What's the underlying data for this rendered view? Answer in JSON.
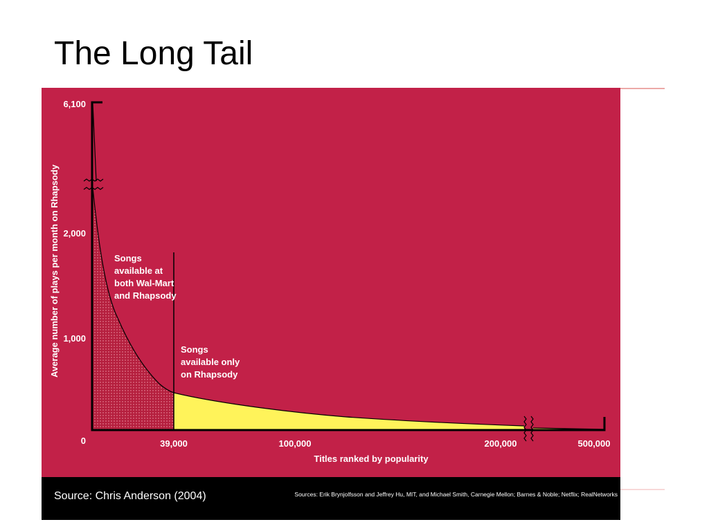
{
  "title": "The Long Tail",
  "chart": {
    "y_axis_title": "Average number of plays per month on Rhapsody",
    "x_axis_title": "Titles ranked by popularity",
    "y_tick_labels": [
      "6,100",
      "2,000",
      "1,000",
      "0"
    ],
    "x_tick_labels": [
      "39,000",
      "100,000",
      "200,000",
      "500,000"
    ],
    "annotations": [
      [
        "Songs",
        "available at",
        "both Wal-Mart",
        "and Rhapsody"
      ],
      [
        "Songs",
        "available only",
        "on Rhapsody"
      ]
    ]
  },
  "footer": {
    "source": "Source: Chris Anderson (2004)",
    "credits": "Sources: Erik Brynjolfsson and Jeffrey Hu, MIT, and Michael Smith, Carnegie Mellon; Barnes & Noble; Netflix; RealNetworks"
  }
}
